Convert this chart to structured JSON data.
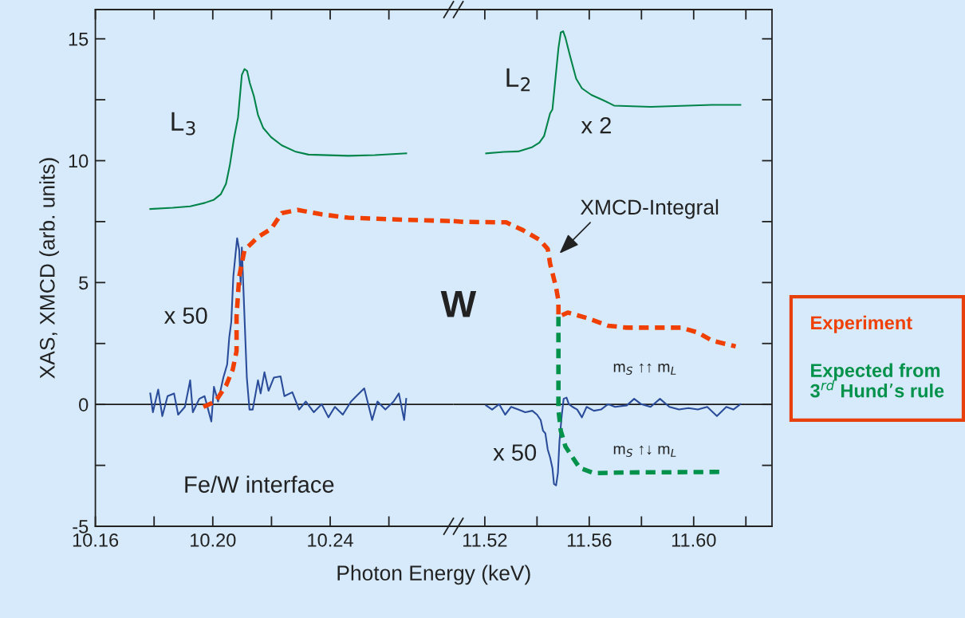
{
  "chart_data": [
    {
      "type": "line",
      "xlabel": "Photon Energy (keV)",
      "ylabel": "XAS, XMCD (arb. units)",
      "xlim": [
        10.16,
        10.282
      ],
      "xticks": [
        10.16,
        {
          "value": 10.18,
          "label": null
        },
        {
          "value": 10.2,
          "label": "10.20"
        },
        {
          "value": 10.22,
          "label": null
        },
        10.24,
        {
          "value": 10.26,
          "label": null
        }
      ],
      "ylim": [
        -5,
        16.2
      ],
      "yticks": [
        -5,
        {
          "value": -2.5,
          "label": null
        },
        0,
        {
          "value": 2.5,
          "label": null
        },
        5,
        {
          "value": 7.5,
          "label": null
        },
        10,
        {
          "value": 12.5,
          "label": null
        },
        15
      ],
      "series": [
        {
          "color": "#00844a",
          "x": [
            10.1787,
            10.1864,
            10.1923,
            10.1973,
            10.2004,
            10.2027,
            10.2045,
            10.2058,
            10.2072,
            10.2086,
            10.2099,
            10.2108,
            10.2117,
            10.2126,
            10.214,
            10.2154,
            10.2172,
            10.2199,
            10.2235,
            10.228,
            10.2326,
            10.2462,
            10.2552,
            10.2659
          ],
          "values": [
            8.02,
            8.07,
            8.13,
            8.27,
            8.4,
            8.62,
            9.05,
            9.81,
            10.9,
            11.77,
            13.52,
            13.76,
            13.68,
            13.19,
            12.65,
            11.88,
            11.34,
            10.96,
            10.63,
            10.38,
            10.25,
            10.2,
            10.23,
            10.3
          ]
        },
        {
          "color": "#2b4c9a",
          "x": [
            10.1787,
            10.1796,
            10.1814,
            10.1828,
            10.1846,
            10.1868,
            10.1882,
            10.1905,
            10.1923,
            10.1932,
            10.1954,
            10.1972,
            10.1995,
            10.2004,
            10.2018,
            10.2036,
            10.2049,
            10.2056,
            10.2063,
            10.207,
            10.2077,
            10.2083,
            10.209,
            10.2095,
            10.2099,
            10.2108,
            10.2116,
            10.2125,
            10.2136,
            10.2154,
            10.2163,
            10.2176,
            10.219,
            10.2208,
            10.2231,
            10.2244,
            10.2271,
            10.2294,
            10.2317,
            10.2344,
            10.2371,
            10.2394,
            10.2416,
            10.2443,
            10.2471,
            10.2489,
            10.2516,
            10.2543,
            10.2561,
            10.2588,
            10.2616,
            10.2634,
            10.2652,
            10.2659
          ],
          "values": [
            0.45,
            -0.32,
            0.61,
            -0.48,
            0.34,
            0.45,
            -0.42,
            -0.1,
            0.99,
            -0.32,
            0.23,
            0.34,
            -0.7,
            0.72,
            0.12,
            1.1,
            1.64,
            2.74,
            3.39,
            5.25,
            6.11,
            6.82,
            6.33,
            4.91,
            6.44,
            3.6,
            1.1,
            -0.21,
            -0.21,
            0.99,
            0.45,
            1.32,
            0.56,
            1.1,
            1.15,
            0.34,
            0.5,
            -0.21,
            0.12,
            -0.32,
            0.01,
            -0.53,
            -0.1,
            -0.42,
            0.12,
            0.34,
            0.66,
            -0.64,
            0.12,
            -0.21,
            0.12,
            0.45,
            -0.64,
            0.23
          ]
        },
        {
          "color": "#f04000",
          "line_style": "dashed",
          "x": [
            10.1968,
            10.2009,
            10.2045,
            10.2068,
            10.2081,
            10.2081,
            10.209,
            10.2108,
            10.2154,
            10.2199,
            10.2235,
            10.2289,
            10.2371,
            10.2462,
            10.2643,
            10.282
          ],
          "values": [
            -0.1,
            0.12,
            0.77,
            1.43,
            2.19,
            3.6,
            5.24,
            6.33,
            6.87,
            7.2,
            7.85,
            7.98,
            7.8,
            7.66,
            7.58,
            7.52
          ]
        }
      ],
      "ref_lines": [
        {
          "axis": "y",
          "value": 0,
          "color": "#1a1a1a"
        }
      ],
      "annotations": [
        "L$_{3}$",
        "x 50",
        "W",
        "Fe/W interface"
      ]
    },
    {
      "type": "line",
      "tick_labels": "x",
      "legend": "right",
      "xlim": [
        11.508,
        11.63
      ],
      "xticks": [
        11.52,
        {
          "value": 11.54,
          "label": null
        },
        11.56,
        {
          "value": 11.58,
          "label": null
        },
        {
          "value": 11.6,
          "label": "11.60"
        },
        {
          "value": 11.62,
          "label": null
        }
      ],
      "ylim": [
        -5,
        16.2
      ],
      "yticks": [
        -5,
        {
          "value": -2.5,
          "label": null
        },
        0,
        {
          "value": 2.5,
          "label": null
        },
        5,
        {
          "value": 7.5,
          "label": null
        },
        10,
        {
          "value": 12.5,
          "label": null
        },
        15
      ],
      "series": [
        {
          "color": "#00844a",
          "x": [
            11.5205,
            11.5273,
            11.5328,
            11.5382,
            11.5409,
            11.5427,
            11.545,
            11.5459,
            11.5468,
            11.5482,
            11.5491,
            11.55,
            11.5509,
            11.5527,
            11.555,
            11.5572,
            11.5608,
            11.5654,
            11.5695,
            11.5835,
            11.607,
            11.6179
          ],
          "values": [
            10.3,
            10.36,
            10.38,
            10.56,
            10.74,
            11.01,
            11.94,
            12.1,
            13.08,
            14.61,
            15.26,
            15.31,
            15.04,
            14.28,
            13.36,
            12.97,
            12.7,
            12.48,
            12.26,
            12.21,
            12.29,
            12.29
          ]
        },
        {
          "color": "#2b4c9a",
          "x": [
            11.5205,
            11.5228,
            11.5255,
            11.5278,
            11.5301,
            11.5328,
            11.5355,
            11.5382,
            11.54,
            11.5414,
            11.5423,
            11.5432,
            11.5441,
            11.545,
            11.5459,
            11.5465,
            11.5473,
            11.548,
            11.5486,
            11.5495,
            11.5502,
            11.5513,
            11.5522,
            11.5536,
            11.5554,
            11.5572,
            11.559,
            11.5618,
            11.5645,
            11.5672,
            11.5699,
            11.5744,
            11.5772,
            11.5799,
            11.5835,
            11.5871,
            11.5907,
            11.5944,
            11.598,
            11.6016,
            11.6052,
            11.6089,
            11.6125,
            11.6152,
            11.6179
          ],
          "values": [
            -0.04,
            -0.21,
            0.01,
            -0.42,
            -0.1,
            -0.21,
            -0.32,
            -0.26,
            -0.42,
            -0.64,
            -1.08,
            -1.19,
            -1.85,
            -2.17,
            -2.61,
            -3.26,
            -3.32,
            -2.81,
            -1.51,
            -0.42,
            0.23,
            0.28,
            0.01,
            -0.1,
            -0.21,
            -0.53,
            -0.1,
            -0.26,
            -0.21,
            0.01,
            -0.1,
            -0.04,
            0.23,
            0.01,
            -0.1,
            0.23,
            -0.1,
            -0.21,
            -0.15,
            -0.21,
            -0.1,
            -0.48,
            -0.1,
            -0.21,
            0.01
          ]
        },
        {
          "name": "Experiment",
          "color": "#f04000",
          "line_style": "dashed",
          "x": [
            11.508,
            11.5119,
            11.5282,
            11.5346,
            11.5409,
            11.5441,
            11.545,
            11.5473,
            11.5482,
            11.5482,
            11.5518,
            11.559,
            11.5672,
            11.5744,
            11.5953,
            11.6016,
            11.607,
            11.6161
          ],
          "values": [
            7.52,
            7.49,
            7.47,
            7.15,
            6.76,
            6.38,
            5.78,
            4.8,
            4.26,
            3.6,
            3.77,
            3.55,
            3.23,
            3.15,
            3.15,
            2.95,
            2.62,
            2.38
          ]
        },
        {
          "name": "Expected from\n3$^{rd}$ Hund’s rule",
          "color": "#00914a",
          "line_style": "dashed",
          "x": [
            11.5482,
            11.5482,
            11.5491,
            11.5509,
            11.5563,
            11.5618,
            11.5744,
            11.6098
          ],
          "values": [
            3.6,
            -0.21,
            -1.08,
            -1.73,
            -2.6,
            -2.82,
            -2.79,
            -2.77
          ]
        }
      ],
      "ref_lines": [
        {
          "axis": "y",
          "value": 0,
          "color": "#1a1a1a"
        }
      ],
      "annotations": [
        "L$_{2}$",
        "x 2",
        "XMCD-Integral",
        "x 50",
        "m$_{S}$ ↑↑ m$_{L}$",
        "m$_{S}$ ↑↓ m$_{L}$"
      ]
    }
  ]
}
